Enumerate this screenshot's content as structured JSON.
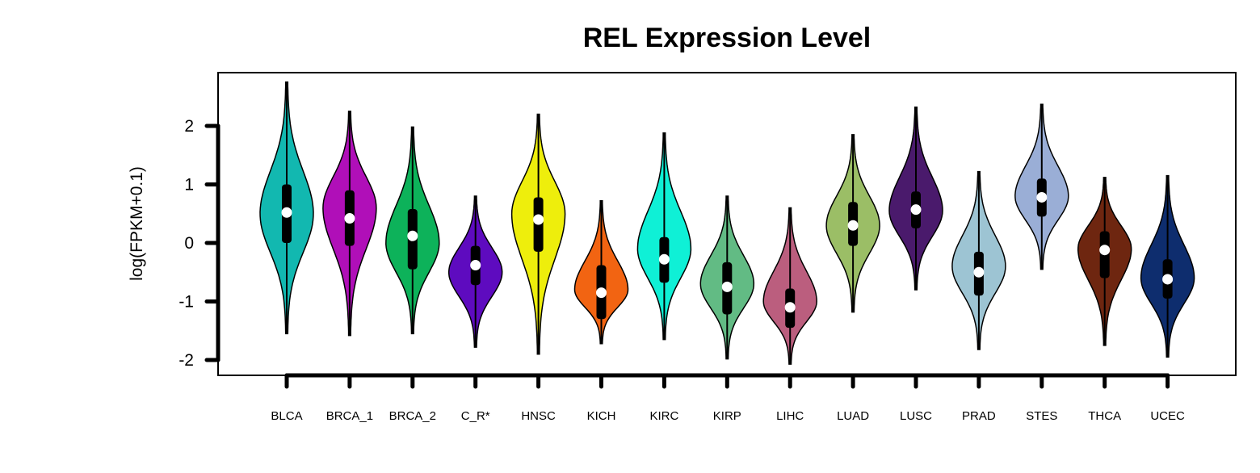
{
  "chart_data": {
    "type": "violin",
    "title": "REL Expression Level",
    "xlabel": "",
    "ylabel": "log(FPKM+0.1)",
    "ylim": [
      -2.25,
      2.9
    ],
    "yticks": [
      -2,
      -1,
      0,
      1,
      2
    ],
    "ytick_labels": [
      "-2",
      "-1",
      "0",
      "1",
      "2"
    ],
    "grid": false,
    "legend": "none",
    "categories": [
      "BLCA",
      "BRCA_1",
      "BRCA_2",
      "C_R*",
      "HNSC",
      "KICH",
      "KIRC",
      "KIRP",
      "LIHC",
      "LUAD",
      "LUSC",
      "PRAD",
      "STES",
      "THCA",
      "UCEC"
    ],
    "colors": [
      "#12b8b0",
      "#b00fb8",
      "#0db25a",
      "#5e0bbf",
      "#eeee0c",
      "#f26412",
      "#0ff0d6",
      "#62bb84",
      "#bb5e7e",
      "#9bbe66",
      "#4a1a6c",
      "#9dc4d3",
      "#9aaed6",
      "#6e2610",
      "#0e2d6e"
    ],
    "violins": [
      {
        "min": -1.55,
        "max": 2.75,
        "q1": 0.0,
        "median": 0.52,
        "q3": 1.0,
        "mode": 0.5
      },
      {
        "min": -1.58,
        "max": 2.25,
        "q1": -0.05,
        "median": 0.42,
        "q3": 0.9,
        "mode": 0.6
      },
      {
        "min": -1.55,
        "max": 1.98,
        "q1": -0.45,
        "median": 0.12,
        "q3": 0.58,
        "mode": 0.0
      },
      {
        "min": -1.78,
        "max": 0.8,
        "q1": -0.72,
        "median": -0.38,
        "q3": -0.05,
        "mode": -0.5
      },
      {
        "min": -1.9,
        "max": 2.2,
        "q1": -0.15,
        "median": 0.4,
        "q3": 0.78,
        "mode": 0.5
      },
      {
        "min": -1.72,
        "max": 0.72,
        "q1": -1.3,
        "median": -0.85,
        "q3": -0.38,
        "mode": -0.8
      },
      {
        "min": -1.65,
        "max": 1.88,
        "q1": -0.68,
        "median": -0.28,
        "q3": 0.1,
        "mode": -0.1
      },
      {
        "min": -1.98,
        "max": 0.8,
        "q1": -1.22,
        "median": -0.75,
        "q3": -0.33,
        "mode": -0.7
      },
      {
        "min": -2.07,
        "max": 0.6,
        "q1": -1.45,
        "median": -1.1,
        "q3": -0.78,
        "mode": -1.0
      },
      {
        "min": -1.18,
        "max": 1.85,
        "q1": -0.05,
        "median": 0.3,
        "q3": 0.7,
        "mode": 0.3
      },
      {
        "min": -0.8,
        "max": 2.32,
        "q1": 0.25,
        "median": 0.57,
        "q3": 0.88,
        "mode": 0.55
      },
      {
        "min": -1.82,
        "max": 1.22,
        "q1": -0.9,
        "median": -0.5,
        "q3": -0.15,
        "mode": -0.4
      },
      {
        "min": -0.45,
        "max": 2.37,
        "q1": 0.45,
        "median": 0.78,
        "q3": 1.1,
        "mode": 0.8
      },
      {
        "min": -1.75,
        "max": 1.12,
        "q1": -0.6,
        "median": -0.12,
        "q3": 0.2,
        "mode": -0.1
      },
      {
        "min": -1.95,
        "max": 1.15,
        "q1": -0.95,
        "median": -0.62,
        "q3": -0.28,
        "mode": -0.6
      }
    ]
  }
}
